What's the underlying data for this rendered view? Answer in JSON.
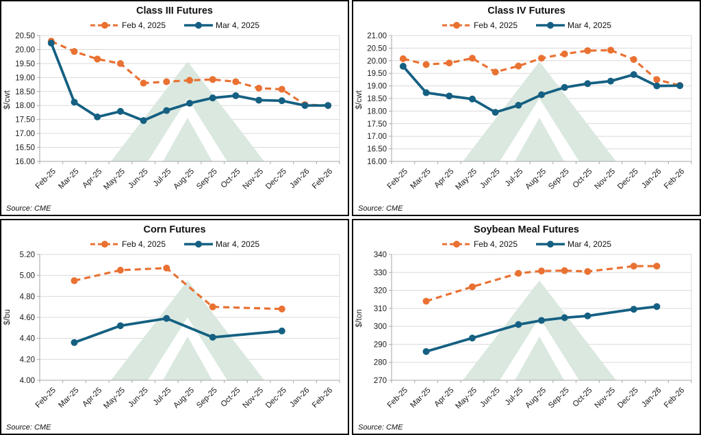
{
  "colors": {
    "feb_series": "#E97132",
    "mar_series": "#156082",
    "grid": "#D9D9D9",
    "axis": "#A6A6A6",
    "watermark_green": "#DAE8DF",
    "text": "#1a1a1a"
  },
  "chart_data": [
    {
      "type": "line",
      "title": "Class III Futures",
      "ylabel": "$/cwt",
      "source": "Source: CME",
      "y_min": 16.0,
      "y_max": 20.5,
      "y_step": 0.5,
      "y_decimals": 2,
      "grid": true,
      "legend_position": "top",
      "categories": [
        "Feb-25",
        "Mar-25",
        "Apr-25",
        "May-25",
        "Jun-25",
        "Jul-25",
        "Aug-25",
        "Sep-25",
        "Oct-25",
        "Nov-25",
        "Dec-25",
        "Jan-26",
        "Feb-26"
      ],
      "series": [
        {
          "name": "Feb 4, 2025",
          "style": "dashed",
          "color_key": "feb_series",
          "values": [
            20.3,
            19.93,
            19.66,
            19.5,
            18.8,
            18.85,
            18.9,
            18.93,
            18.85,
            18.62,
            18.58,
            18.03,
            18.0
          ]
        },
        {
          "name": "Mar 4, 2025",
          "style": "solid",
          "color_key": "mar_series",
          "values": [
            20.23,
            18.12,
            17.59,
            17.79,
            17.46,
            17.82,
            18.08,
            18.27,
            18.35,
            18.19,
            18.17,
            18.0,
            18.0
          ]
        }
      ]
    },
    {
      "type": "line",
      "title": "Class IV Futures",
      "ylabel": "$/cwt",
      "source": "Source: CME",
      "y_min": 16.0,
      "y_max": 21.0,
      "y_step": 0.5,
      "y_decimals": 2,
      "grid": true,
      "legend_position": "top",
      "categories": [
        "Feb-25",
        "Mar-25",
        "Apr-25",
        "May-25",
        "Jun-25",
        "Jul-25",
        "Aug-25",
        "Sep-25",
        "Oct-25",
        "Nov-25",
        "Dec-25",
        "Jan-26",
        "Feb-26"
      ],
      "series": [
        {
          "name": "Feb 4, 2025",
          "style": "dashed",
          "color_key": "feb_series",
          "values": [
            20.08,
            19.85,
            19.91,
            20.1,
            19.55,
            19.79,
            20.1,
            20.27,
            20.4,
            20.42,
            20.05,
            19.25,
            19.02
          ]
        },
        {
          "name": "Mar 4, 2025",
          "style": "solid",
          "color_key": "mar_series",
          "values": [
            19.78,
            18.73,
            18.6,
            18.48,
            17.95,
            18.23,
            18.65,
            18.94,
            19.09,
            19.19,
            19.45,
            19.0,
            19.01
          ]
        }
      ]
    },
    {
      "type": "line",
      "title": "Corn Futures",
      "ylabel": "$/bu",
      "source": "Source: CME",
      "y_min": 4.0,
      "y_max": 5.2,
      "y_step": 0.2,
      "y_decimals": 2,
      "grid": true,
      "legend_position": "top",
      "categories": [
        "Feb-25",
        "Mar-25",
        "Apr-25",
        "May-25",
        "Jun-25",
        "Jul-25",
        "Aug-25",
        "Sep-25",
        "Oct-25",
        "Nov-25",
        "Dec-25",
        "Jan-26",
        "Feb-26"
      ],
      "series": [
        {
          "name": "Feb 4, 2025",
          "style": "dashed",
          "color_key": "feb_series",
          "values": [
            null,
            4.95,
            null,
            5.05,
            null,
            5.07,
            null,
            4.7,
            null,
            null,
            4.68,
            null,
            null
          ]
        },
        {
          "name": "Mar 4, 2025",
          "style": "solid",
          "color_key": "mar_series",
          "values": [
            null,
            4.36,
            null,
            4.52,
            null,
            4.59,
            null,
            4.41,
            null,
            null,
            4.47,
            null,
            null
          ]
        }
      ]
    },
    {
      "type": "line",
      "title": "Soybean Meal Futures",
      "ylabel": "$/ton",
      "source": "Source: CME",
      "y_min": 270,
      "y_max": 340,
      "y_step": 10,
      "y_decimals": 0,
      "grid": true,
      "legend_position": "top",
      "categories": [
        "Feb-25",
        "Mar-25",
        "Apr-25",
        "May-25",
        "Jun-25",
        "Jul-25",
        "Aug-25",
        "Sep-25",
        "Oct-25",
        "Nov-25",
        "Dec-25",
        "Jan-26",
        "Feb-26"
      ],
      "series": [
        {
          "name": "Feb 4, 2025",
          "style": "dashed",
          "color_key": "feb_series",
          "values": [
            null,
            314,
            null,
            322,
            null,
            329.5,
            330.8,
            331.0,
            330.5,
            null,
            333.5,
            333.5,
            null
          ]
        },
        {
          "name": "Mar 4, 2025",
          "style": "solid",
          "color_key": "mar_series",
          "values": [
            null,
            286,
            null,
            293.5,
            null,
            301,
            303.3,
            304.8,
            305.8,
            null,
            309.5,
            311,
            null
          ]
        }
      ]
    }
  ]
}
